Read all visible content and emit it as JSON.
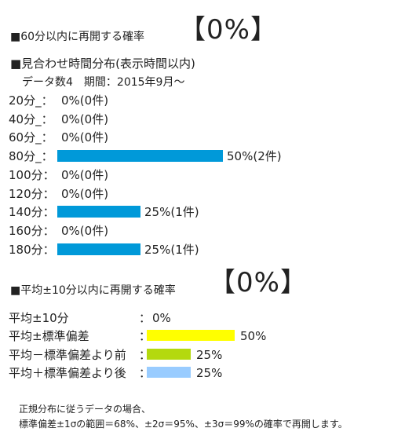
{
  "section1": {
    "title": "■60分以内に再開する確率",
    "percent": "【0%】"
  },
  "section2": {
    "title": "■見合わせ時間分布(表示時間以内)",
    "meta": "データ数4　期間：2015年9月～",
    "rows": [
      {
        "label": "20分_：",
        "pct": 0,
        "value": "0%(0件)"
      },
      {
        "label": "40分_：",
        "pct": 0,
        "value": "0%(0件)"
      },
      {
        "label": "60分_：",
        "pct": 0,
        "value": "0%(0件)"
      },
      {
        "label": "80分_：",
        "pct": 50,
        "value": "50%(2件)"
      },
      {
        "label": "100分：",
        "pct": 0,
        "value": "0%(0件)"
      },
      {
        "label": "120分：",
        "pct": 0,
        "value": "0%(0件)"
      },
      {
        "label": "140分：",
        "pct": 25,
        "value": "25%(1件)"
      },
      {
        "label": "160分：",
        "pct": 0,
        "value": "0%(0件)"
      },
      {
        "label": "180分：",
        "pct": 25,
        "value": "25%(1件)"
      }
    ]
  },
  "section3": {
    "title": "■平均±10分以内に再開する確率",
    "percent": "【0%】",
    "rows": [
      {
        "label": "平均±10分",
        "colon": "：",
        "pct": 0,
        "value": "0%",
        "color": ""
      },
      {
        "label": "平均±標準偏差",
        "colon": "：",
        "pct": 50,
        "value": "50%",
        "color": "#ffff00"
      },
      {
        "label": "平均－標準偏差より前",
        "colon": "：",
        "pct": 25,
        "value": "25%",
        "color": "#b4d90e"
      },
      {
        "label": "平均＋標準偏差より後",
        "colon": "：",
        "pct": 25,
        "value": "25%",
        "color": "#99ccff"
      }
    ]
  },
  "note": {
    "line1": "正規分布に従うデータの場合、",
    "line2": "標準偏差±1σの範囲＝68%、±2σ＝95%、±3σ＝99%の確率で再開します。"
  },
  "colors": {
    "distribution_bar": "#0099d9"
  }
}
